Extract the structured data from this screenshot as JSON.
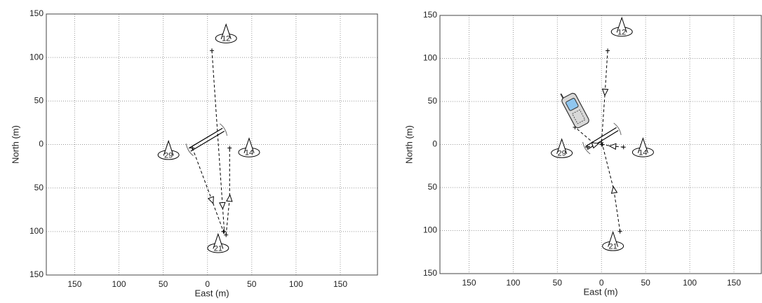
{
  "chart_data": [
    {
      "type": "line",
      "xlabel": "East (m)",
      "ylabel": "North (m)",
      "xlim": [
        -182,
        192
      ],
      "ylim": [
        -150,
        150
      ],
      "xticks": [
        {
          "value": -150,
          "label": "150"
        },
        {
          "value": -100,
          "label": "100"
        },
        {
          "value": -50,
          "label": "50"
        },
        0,
        50,
        100,
        150
      ],
      "yticks": [
        {
          "value": -150,
          "label": "150"
        },
        {
          "value": -100,
          "label": "100"
        },
        {
          "value": -50,
          "label": "50"
        },
        0,
        50,
        100,
        150
      ],
      "grid": true,
      "series": [
        {
          "color": "#000000",
          "x": [
            5,
            17,
            19
          ],
          "values": [
            108,
            -70,
            -100
          ]
        },
        {
          "color": "#000000",
          "x": [
            21,
            25,
            25
          ],
          "values": [
            -104,
            -62,
            -4
          ]
        },
        {
          "color": "#000000",
          "x": [
            -17,
            5,
            18
          ],
          "values": [
            -4,
            -64,
            -100
          ]
        }
      ],
      "stations": {
        "labels": [
          "12",
          "14",
          "21",
          "29"
        ],
        "x": [
          21,
          47,
          12,
          -44
        ],
        "y": [
          122,
          -9,
          -119,
          -12
        ]
      },
      "crossing": {
        "x": [
          -20,
          18
        ],
        "y": [
          -6,
          17
        ]
      }
    },
    {
      "type": "line",
      "xlabel": "East (m)",
      "ylabel": "North (m)",
      "xlim": [
        -183,
        181
      ],
      "ylim": [
        -150,
        150
      ],
      "xticks": [
        {
          "value": -150,
          "label": "150"
        },
        {
          "value": -100,
          "label": "100"
        },
        {
          "value": -50,
          "label": "50"
        },
        0,
        50,
        100,
        150
      ],
      "yticks": [
        {
          "value": -150,
          "label": "150"
        },
        {
          "value": -100,
          "label": "100"
        },
        {
          "value": -50,
          "label": "50"
        },
        0,
        50,
        100,
        150
      ],
      "grid": true,
      "series": [
        {
          "color": "#000000",
          "x": [
            7,
            4,
            0
          ],
          "values": [
            109,
            61,
            2
          ]
        },
        {
          "color": "#000000",
          "x": [
            21,
            14,
            1
          ],
          "values": [
            -101,
            -53,
            0
          ]
        },
        {
          "color": "#000000",
          "x": [
            25,
            13,
            0
          ],
          "values": [
            -3,
            -2,
            0
          ]
        },
        {
          "color": "#000000",
          "x": [
            -16,
            -7,
            -30
          ],
          "values": [
            -3,
            0,
            20
          ]
        }
      ],
      "stations": {
        "labels": [
          "12",
          "14",
          "21",
          "29"
        ],
        "x": [
          23,
          47,
          13,
          -45
        ],
        "y": [
          131,
          -9,
          -118,
          -10
        ]
      },
      "crossing": {
        "x": [
          -17,
          18
        ],
        "y": [
          -4,
          18
        ]
      }
    }
  ]
}
